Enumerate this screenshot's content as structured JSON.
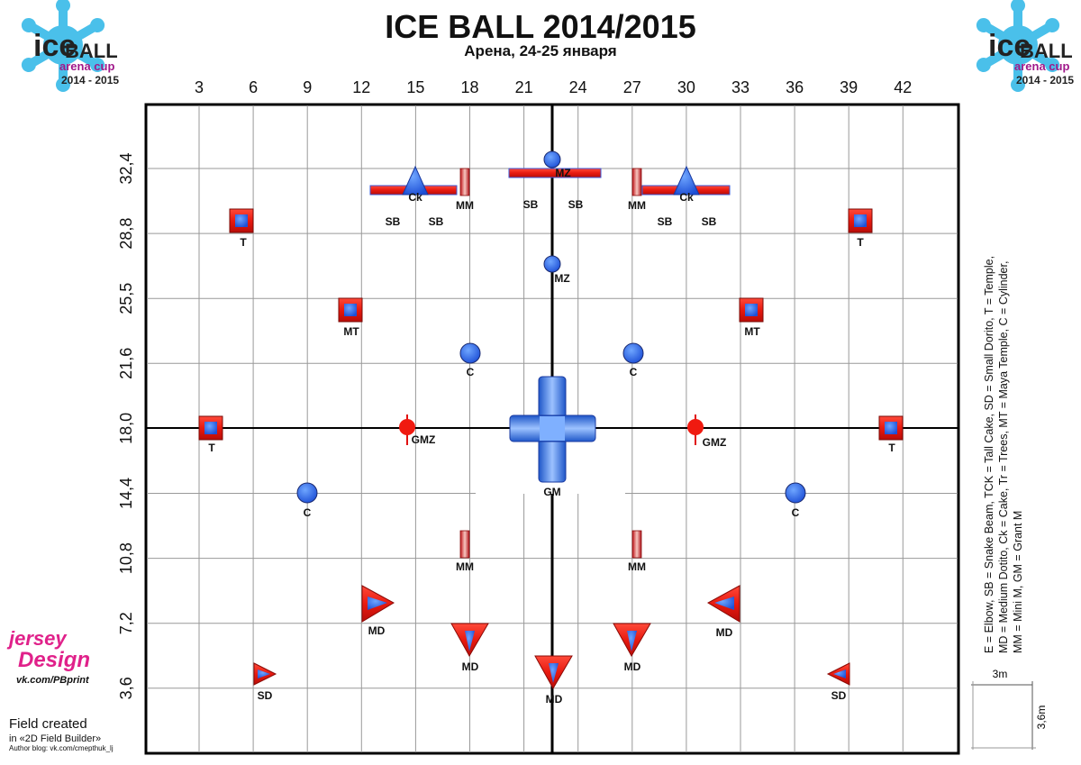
{
  "header": {
    "title": "ICE BALL 2014/2015",
    "subtitle": "Арена, 24-25 января"
  },
  "logos": [
    {
      "ice": "ice",
      "ball": "BALL",
      "event": "arena cup",
      "years": "2014 - 2015"
    },
    {
      "ice": "ice",
      "ball": "BALL",
      "event": "arena cup",
      "years": "2014 - 2015"
    }
  ],
  "axes": {
    "columns": [
      "3",
      "6",
      "9",
      "12",
      "15",
      "18",
      "21",
      "24",
      "27",
      "30",
      "33",
      "36",
      "39",
      "42"
    ],
    "rows": [
      "32,4",
      "28,8",
      "25,5",
      "21,6",
      "18,0",
      "14,4",
      "10,8",
      "7,2",
      "3,6"
    ]
  },
  "obstacle_labels": [
    "Ck",
    "SB",
    "SB",
    "MM",
    "SB",
    "MZ",
    "SB",
    "MM",
    "Ck",
    "SB",
    "SB",
    "T",
    "T",
    "MZ",
    "MT",
    "MT",
    "C",
    "C",
    "T",
    "GMZ",
    "GMZ",
    "T",
    "GM",
    "C",
    "C",
    "MM",
    "MM",
    "MD",
    "MD",
    "MD",
    "MD",
    "MD",
    "SD",
    "SD"
  ],
  "legend": [
    "E = Elbow, SB = Snake Beam, TCK = Tall Cake, SD = Small Dorito, T = Temple,",
    "MD = Medium Dotito, Ck = Cake, Tr = Trees, MT = Maya Temple, C = Cylinder,",
    "MM = Mini M, GM = Grant M"
  ],
  "scale": {
    "width": "3m",
    "height": "3,6m"
  },
  "credits": {
    "brand_1": "jersey",
    "brand_2": "Design",
    "link": "vk.com/PBprint",
    "line1": "Field created",
    "line2": "in «2D Field Builder»",
    "line3": "Author blog: vk.com/cmepthuk_lj"
  }
}
